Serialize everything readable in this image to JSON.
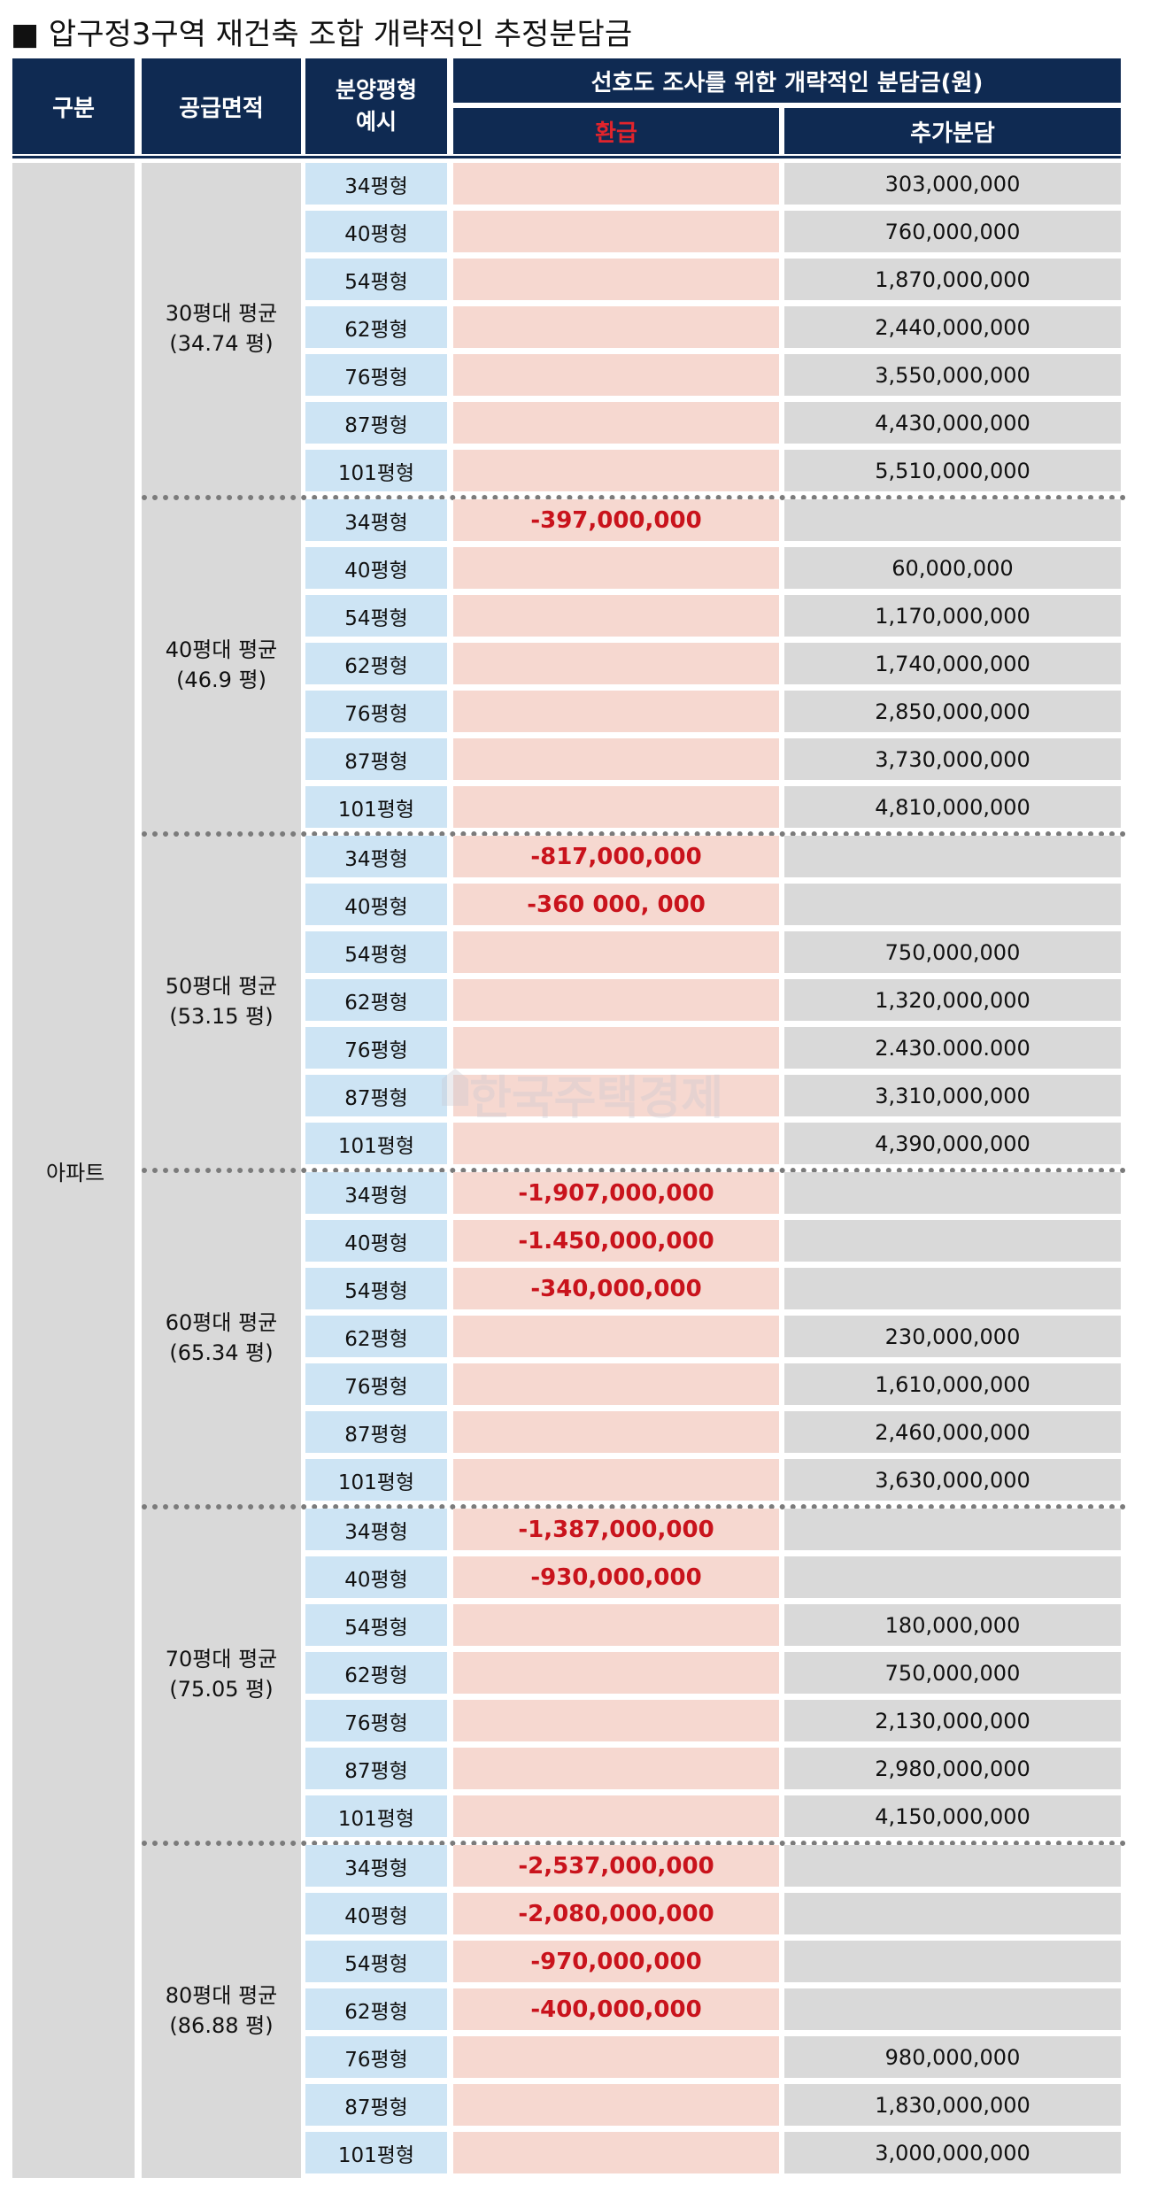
{
  "title": "■ 압구정3구역 재건축 조합 개략적인 추정분담금",
  "header": {
    "col1": "구분",
    "col2": "공급면적",
    "col3_line1": "분양평형",
    "col3_line2": "예시",
    "group": "선호도 조사를 위한 개략적인 분담금(원)",
    "refund": "환급",
    "additional": "추가분담"
  },
  "colors": {
    "header_bg": "#0f2a52",
    "refund_text": "#c9131c",
    "type_cell_bg": "#cde4f4",
    "refund_cell_bg": "#f6d8d0",
    "additional_cell_bg": "#d9d9d9"
  },
  "category": "아파트",
  "watermark": "한국주택경제",
  "groups": [
    {
      "label": "30평대 평균",
      "avg": "(34.74 평)",
      "rows": [
        {
          "type": "34평형",
          "refund": "",
          "additional": "303,000,000"
        },
        {
          "type": "40평형",
          "refund": "",
          "additional": "760,000,000"
        },
        {
          "type": "54평형",
          "refund": "",
          "additional": "1,870,000,000"
        },
        {
          "type": "62평형",
          "refund": "",
          "additional": "2,440,000,000"
        },
        {
          "type": "76평형",
          "refund": "",
          "additional": "3,550,000,000"
        },
        {
          "type": "87평형",
          "refund": "",
          "additional": "4,430,000,000"
        },
        {
          "type": "101평형",
          "refund": "",
          "additional": "5,510,000,000"
        }
      ]
    },
    {
      "label": "40평대 평균",
      "avg": "(46.9 평)",
      "rows": [
        {
          "type": "34평형",
          "refund": "-397,000,000",
          "additional": ""
        },
        {
          "type": "40평형",
          "refund": "",
          "additional": "60,000,000"
        },
        {
          "type": "54평형",
          "refund": "",
          "additional": "1,170,000,000"
        },
        {
          "type": "62평형",
          "refund": "",
          "additional": "1,740,000,000"
        },
        {
          "type": "76평형",
          "refund": "",
          "additional": "2,850,000,000"
        },
        {
          "type": "87평형",
          "refund": "",
          "additional": "3,730,000,000"
        },
        {
          "type": "101평형",
          "refund": "",
          "additional": "4,810,000,000"
        }
      ]
    },
    {
      "label": "50평대 평균",
      "avg": "(53.15 평)",
      "rows": [
        {
          "type": "34평형",
          "refund": "-817,000,000",
          "additional": ""
        },
        {
          "type": "40평형",
          "refund": "-360 000, 000",
          "additional": ""
        },
        {
          "type": "54평형",
          "refund": "",
          "additional": "750,000,000"
        },
        {
          "type": "62평형",
          "refund": "",
          "additional": "1,320,000,000"
        },
        {
          "type": "76평형",
          "refund": "",
          "additional": "2.430.000.000"
        },
        {
          "type": "87평형",
          "refund": "",
          "additional": "3,310,000,000"
        },
        {
          "type": "101평형",
          "refund": "",
          "additional": "4,390,000,000"
        }
      ]
    },
    {
      "label": "60평대 평균",
      "avg": "(65.34 평)",
      "rows": [
        {
          "type": "34평형",
          "refund": "-1,907,000,000",
          "additional": ""
        },
        {
          "type": "40평형",
          "refund": "-1.450,000,000",
          "additional": ""
        },
        {
          "type": "54평형",
          "refund": "-340,000,000",
          "additional": ""
        },
        {
          "type": "62평형",
          "refund": "",
          "additional": "230,000,000"
        },
        {
          "type": "76평형",
          "refund": "",
          "additional": "1,610,000,000"
        },
        {
          "type": "87평형",
          "refund": "",
          "additional": "2,460,000,000"
        },
        {
          "type": "101평형",
          "refund": "",
          "additional": "3,630,000,000"
        }
      ]
    },
    {
      "label": "70평대 평균",
      "avg": "(75.05 평)",
      "rows": [
        {
          "type": "34평형",
          "refund": "-1,387,000,000",
          "additional": ""
        },
        {
          "type": "40평형",
          "refund": "-930,000,000",
          "additional": ""
        },
        {
          "type": "54평형",
          "refund": "",
          "additional": "180,000,000"
        },
        {
          "type": "62평형",
          "refund": "",
          "additional": "750,000,000"
        },
        {
          "type": "76평형",
          "refund": "",
          "additional": "2,130,000,000"
        },
        {
          "type": "87평형",
          "refund": "",
          "additional": "2,980,000,000"
        },
        {
          "type": "101평형",
          "refund": "",
          "additional": "4,150,000,000"
        }
      ]
    },
    {
      "label": "80평대 평균",
      "avg": "(86.88 평)",
      "rows": [
        {
          "type": "34평형",
          "refund": "-2,537,000,000",
          "additional": ""
        },
        {
          "type": "40평형",
          "refund": "-2,080,000,000",
          "additional": ""
        },
        {
          "type": "54평형",
          "refund": "-970,000,000",
          "additional": ""
        },
        {
          "type": "62평형",
          "refund": "-400,000,000",
          "additional": ""
        },
        {
          "type": "76평형",
          "refund": "",
          "additional": "980,000,000"
        },
        {
          "type": "87평형",
          "refund": "",
          "additional": "1,830,000,000"
        },
        {
          "type": "101평형",
          "refund": "",
          "additional": "3,000,000,000"
        }
      ]
    }
  ]
}
